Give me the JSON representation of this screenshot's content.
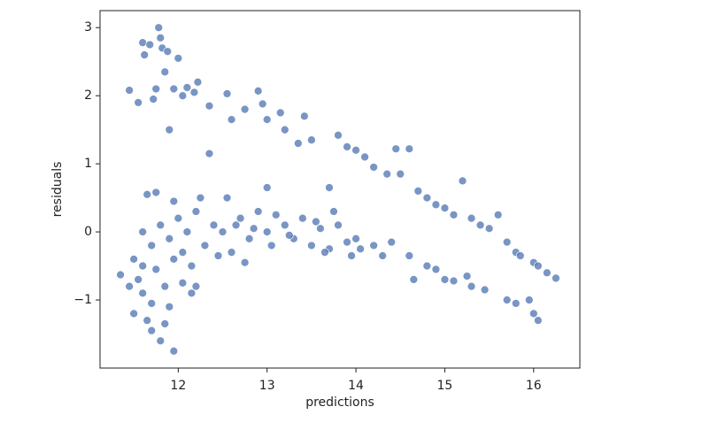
{
  "chart_data": {
    "type": "scatter",
    "x_label": "predictions",
    "y_label": "residuals",
    "color": "#4c72b0",
    "xlim": [
      11.12,
      16.52
    ],
    "ylim": [
      -2.0,
      3.25
    ],
    "xticks": [
      12,
      13,
      14,
      15,
      16
    ],
    "yticks": [
      {
        "value": -1,
        "label": "−1"
      },
      0,
      1,
      2,
      3
    ],
    "x": [
      11.45,
      11.55,
      11.6,
      11.62,
      11.68,
      11.72,
      11.75,
      11.78,
      11.8,
      11.82,
      11.85,
      11.88,
      11.9,
      11.95,
      12.0,
      12.05,
      12.1,
      12.18,
      12.22,
      12.35,
      12.55,
      12.6,
      12.75,
      12.9,
      12.95,
      13.0,
      13.15,
      13.2,
      13.35,
      13.42,
      13.5,
      13.8,
      13.9,
      14.0,
      14.1,
      14.2,
      14.35,
      14.45,
      14.6,
      14.7,
      14.8,
      14.9,
      15.0,
      15.1,
      15.2,
      15.3,
      15.5,
      15.6,
      15.7,
      15.8,
      15.85,
      16.0,
      16.05,
      16.15,
      16.25,
      15.4,
      14.5,
      13.7,
      13.75,
      12.35,
      11.6,
      11.7,
      11.8,
      11.9,
      12.0,
      12.05,
      12.1,
      12.2,
      12.3,
      12.4,
      12.5,
      12.55,
      12.6,
      12.7,
      12.8,
      12.9,
      13.0,
      13.05,
      13.1,
      13.2,
      13.3,
      13.4,
      13.5,
      13.6,
      13.7,
      13.8,
      13.9,
      14.0,
      12.15,
      12.45,
      12.75,
      13.0,
      12.25,
      11.65,
      11.75,
      11.95,
      12.65,
      13.25,
      13.55,
      12.85,
      14.2,
      14.4,
      14.6,
      14.8,
      14.9,
      15.0,
      15.1,
      15.3,
      15.45,
      15.7,
      15.8,
      15.95,
      16.0,
      16.05,
      14.65,
      15.25,
      14.3,
      13.95,
      14.05,
      13.65,
      11.35,
      11.45,
      11.5,
      11.55,
      11.6,
      11.65,
      11.7,
      11.75,
      11.8,
      11.85,
      11.9,
      11.95,
      11.95,
      12.05,
      12.15,
      12.2,
      11.5,
      11.7,
      11.85,
      11.6
    ],
    "y": [
      2.08,
      1.9,
      2.78,
      2.6,
      2.75,
      1.95,
      2.1,
      3.0,
      2.85,
      2.7,
      2.35,
      2.65,
      1.5,
      2.1,
      2.55,
      2.0,
      2.12,
      2.05,
      2.2,
      1.85,
      2.03,
      1.65,
      1.8,
      2.07,
      1.88,
      1.65,
      1.75,
      1.5,
      1.3,
      1.7,
      1.35,
      1.42,
      1.25,
      1.2,
      1.1,
      0.95,
      0.85,
      1.22,
      1.22,
      0.6,
      0.5,
      0.4,
      0.35,
      0.25,
      0.75,
      0.2,
      0.05,
      0.25,
      -0.15,
      -0.3,
      -0.35,
      -0.45,
      -0.5,
      -0.6,
      -0.68,
      0.1,
      0.85,
      0.65,
      0.3,
      1.15,
      0.0,
      -0.2,
      0.1,
      -0.1,
      0.2,
      -0.3,
      0.0,
      0.3,
      -0.2,
      0.1,
      0.0,
      0.5,
      -0.3,
      0.2,
      -0.1,
      0.3,
      0.0,
      -0.2,
      0.25,
      0.1,
      -0.1,
      0.2,
      -0.2,
      0.05,
      -0.25,
      0.1,
      -0.15,
      -0.1,
      -0.5,
      -0.35,
      -0.45,
      0.65,
      0.5,
      0.55,
      0.58,
      0.45,
      0.1,
      -0.05,
      0.15,
      0.05,
      -0.2,
      -0.15,
      -0.35,
      -0.5,
      -0.55,
      -0.7,
      -0.72,
      -0.8,
      -0.85,
      -1.0,
      -1.05,
      -1.0,
      -1.2,
      -1.3,
      -0.7,
      -0.65,
      -0.35,
      -0.35,
      -0.25,
      -0.3,
      -0.63,
      -0.8,
      -1.2,
      -0.7,
      -0.9,
      -1.3,
      -1.45,
      -0.55,
      -1.6,
      -0.8,
      -1.1,
      -0.4,
      -1.75,
      -0.75,
      -0.9,
      -0.8,
      -0.4,
      -1.05,
      -1.35,
      -0.5
    ]
  }
}
